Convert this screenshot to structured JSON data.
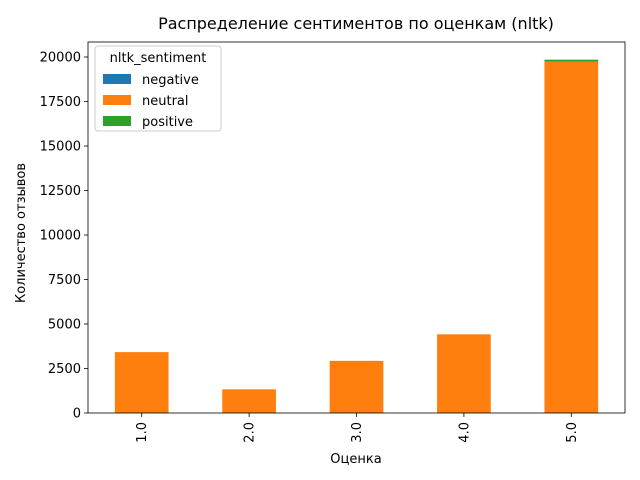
{
  "chart_data": {
    "type": "bar",
    "stacked": true,
    "title": "Распределение сентиментов по оценкам (nltk)",
    "xlabel": "Оценка",
    "ylabel": "Количество отзывов",
    "categories": [
      "1.0",
      "2.0",
      "3.0",
      "4.0",
      "5.0"
    ],
    "series": [
      {
        "name": "negative",
        "color": "#1f77b4",
        "values": [
          0,
          0,
          0,
          0,
          0
        ]
      },
      {
        "name": "neutral",
        "color": "#ff7f0e",
        "values": [
          3420,
          1330,
          2930,
          4420,
          19750
        ]
      },
      {
        "name": "positive",
        "color": "#2ca02c",
        "values": [
          0,
          0,
          0,
          0,
          100
        ]
      }
    ],
    "yticks": [
      0,
      2500,
      5000,
      7500,
      10000,
      12500,
      15000,
      17500,
      20000
    ],
    "ylim": [
      0,
      20843
    ],
    "legend": {
      "title": "nltk_sentiment",
      "placement": "top-left"
    },
    "grid": false
  }
}
